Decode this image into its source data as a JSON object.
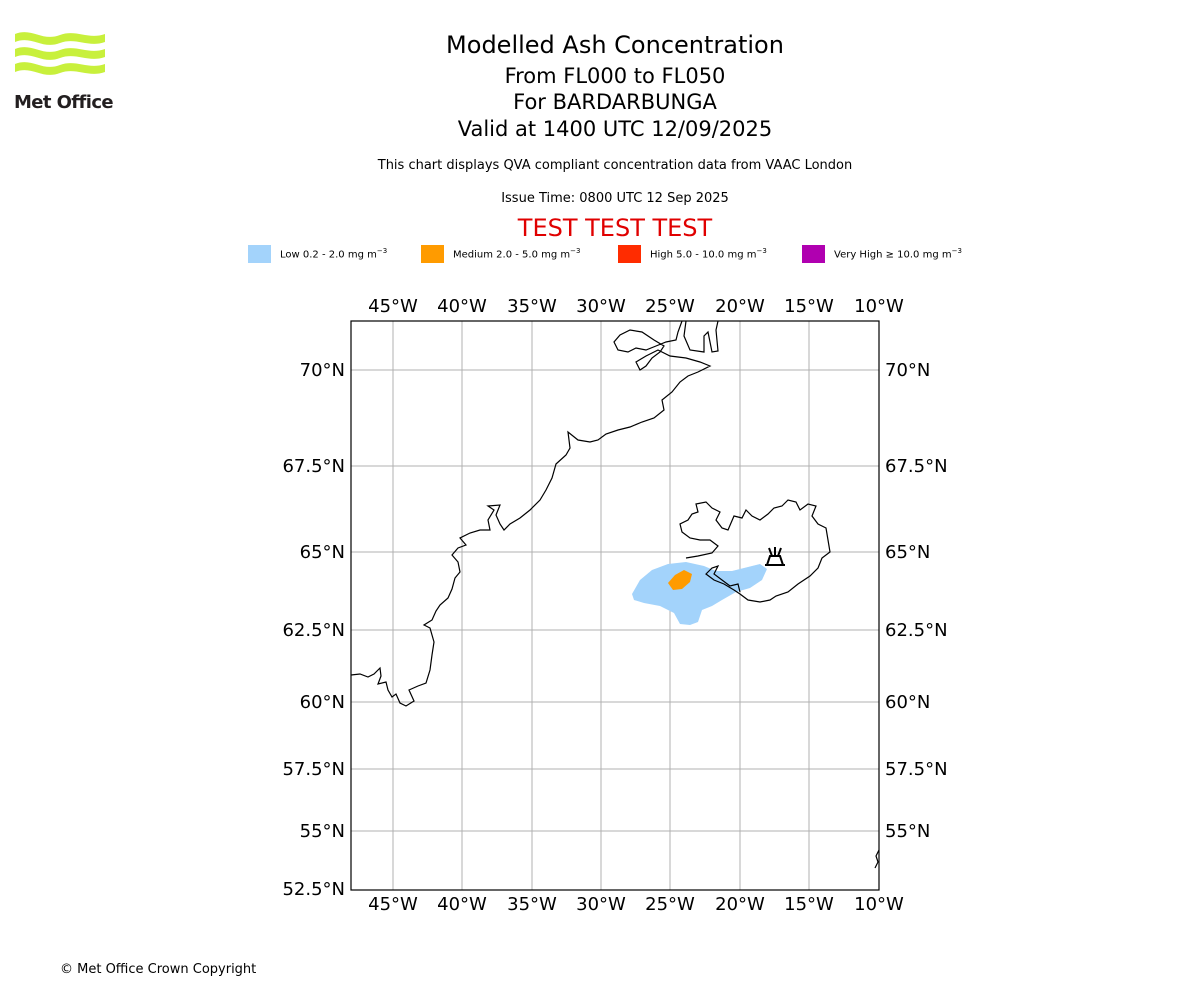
{
  "title": "Modelled Ash Concentration",
  "subtitle_levels": "From FL000 to FL050",
  "subtitle_volcano": "For BARDARBUNGA",
  "subtitle_valid": "Valid at 1400 UTC 12/09/2025",
  "description": "This chart displays QVA compliant concentration data from VAAC London",
  "issue_time": "Issue Time: 0800 UTC 12 Sep 2025",
  "test_banner": "TEST TEST TEST",
  "logo": {
    "text": "Met Office"
  },
  "copyright": "© Met Office Crown Copyright",
  "legend": [
    {
      "label": "Low 0.2 - 2.0 mg m",
      "sup": "−3",
      "color": "#a3d3fb"
    },
    {
      "label": "Medium 2.0 - 5.0 mg m",
      "sup": "−3",
      "color": "#ff9b00"
    },
    {
      "label": "High 5.0 - 10.0 mg m",
      "sup": "−3",
      "color": "#ff2c00"
    },
    {
      "label": "Very High  ≥  10.0 mg m",
      "sup": "−3",
      "color": "#b000b0"
    }
  ],
  "map": {
    "lon_ticks": [
      "45°W",
      "40°W",
      "35°W",
      "30°W",
      "25°W",
      "20°W",
      "15°W",
      "10°W"
    ],
    "lat_ticks_left": [
      "70°N",
      "67.5°N",
      "65°N",
      "62.5°N",
      "60°N",
      "57.5°N",
      "55°N",
      "52.5°N"
    ],
    "lat_ticks_right": [
      "70°N",
      "67.5°N",
      "65°N",
      "62.5°N",
      "60°N",
      "57.5°N",
      "55°N"
    ],
    "volcano_icon": "volcano-icon"
  }
}
